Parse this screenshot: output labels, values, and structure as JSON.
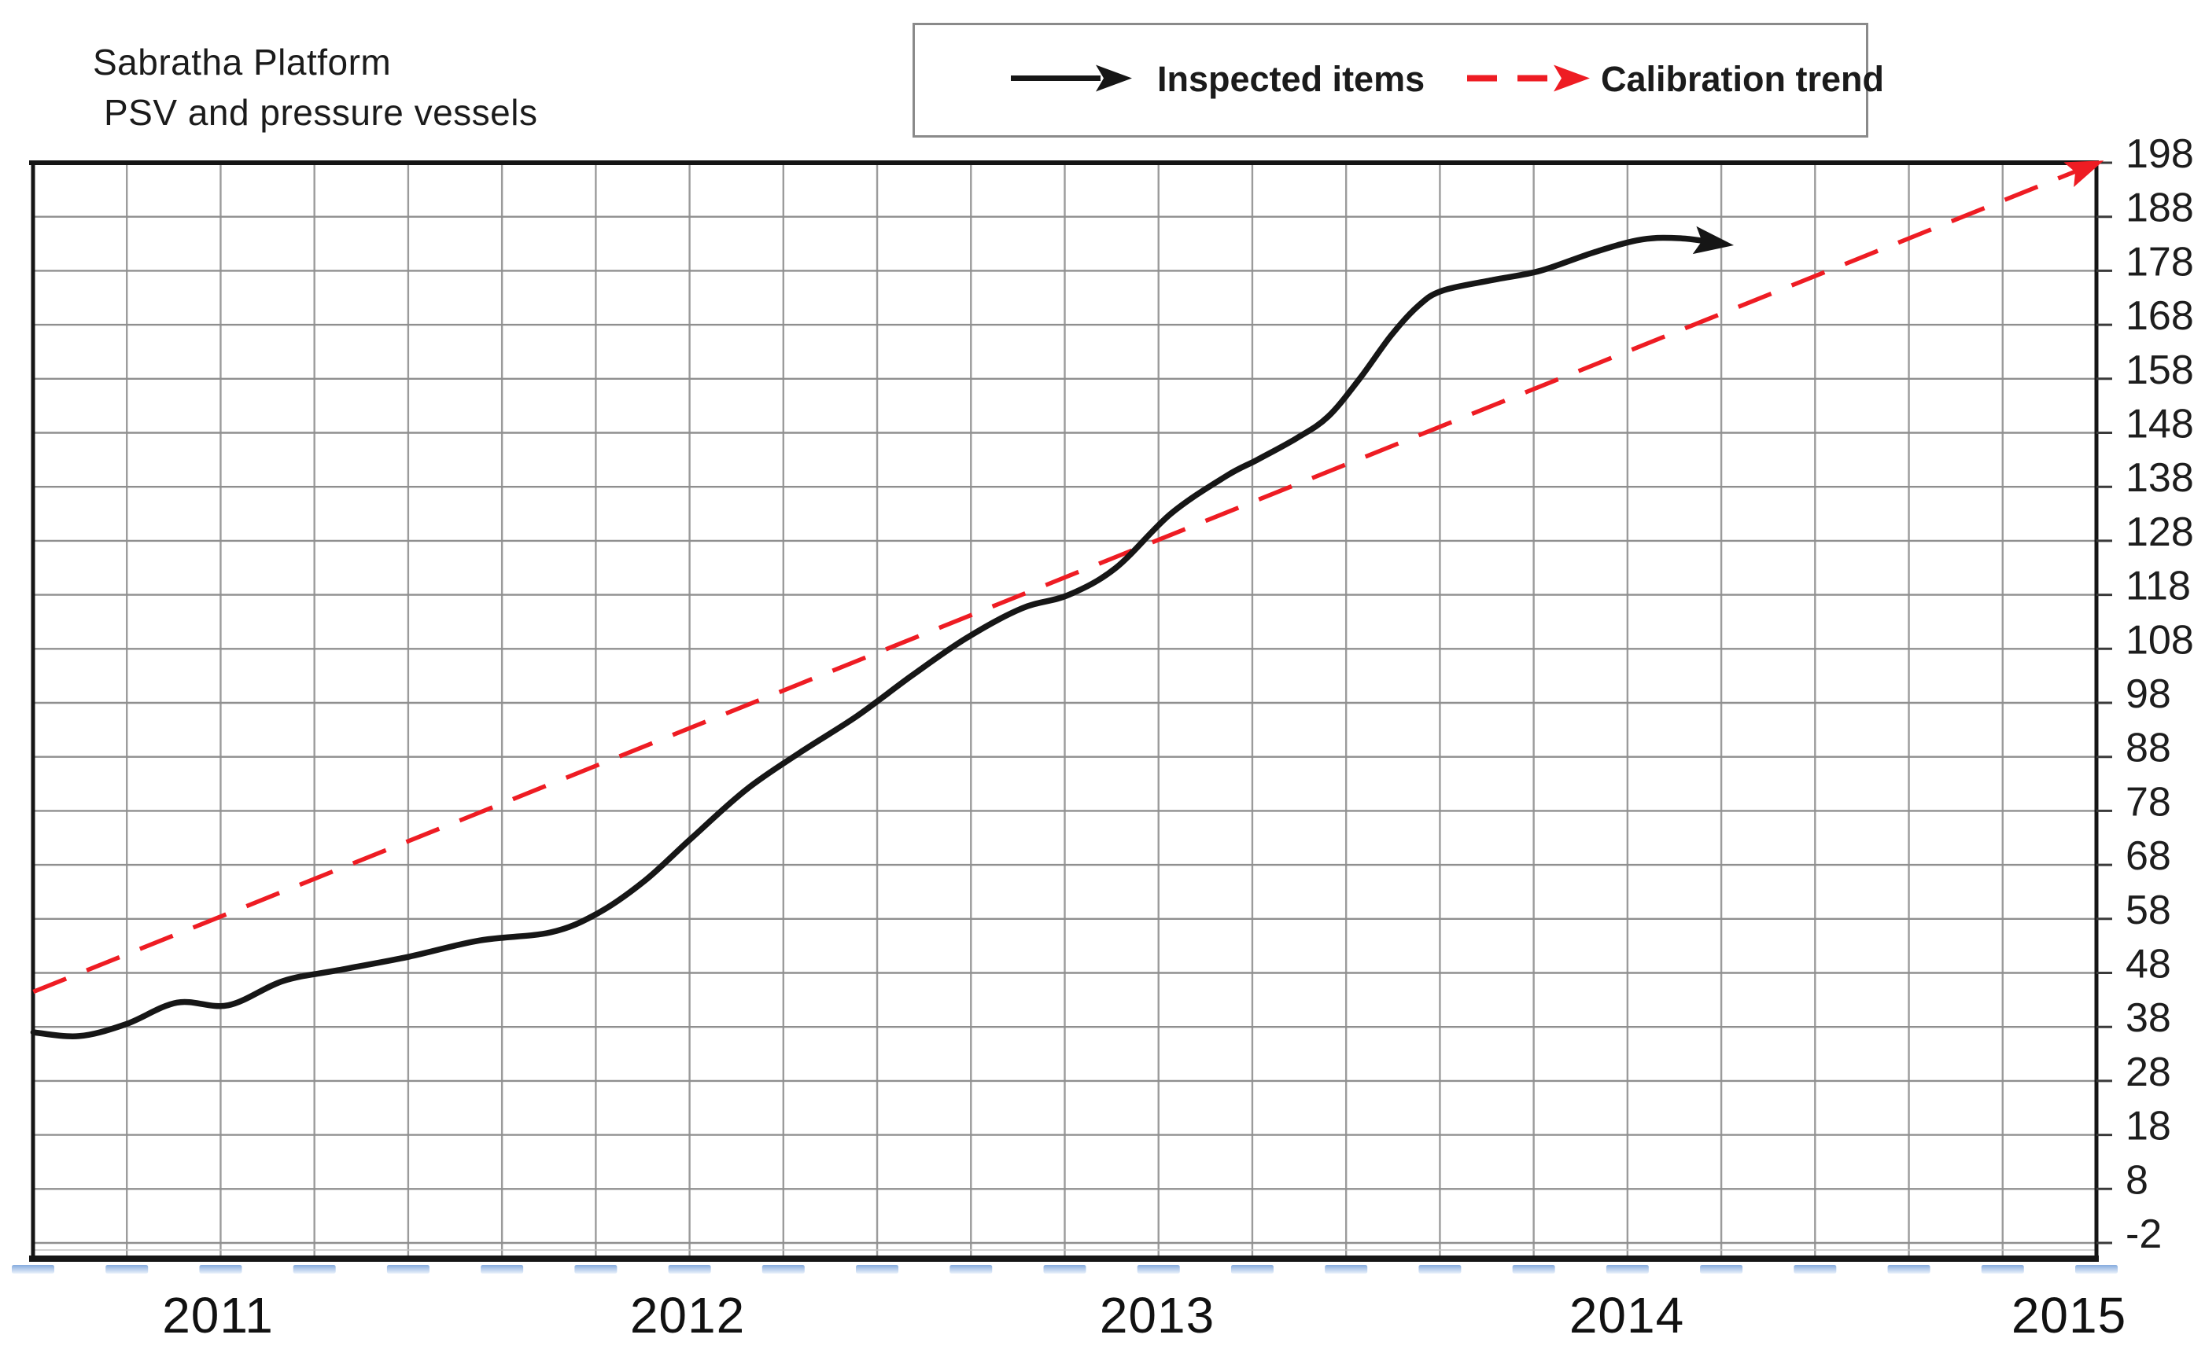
{
  "title": {
    "line1": "Sabratha Platform",
    "line2": "PSV and pressure vessels"
  },
  "legend": {
    "items": [
      {
        "label": "Inspected items",
        "marker": "solid-arrow",
        "color": "#161616"
      },
      {
        "label": "Calibration trend",
        "marker": "dashed-arrow",
        "color": "#ee1c23"
      }
    ]
  },
  "chart_data": {
    "type": "line",
    "title": "Sabratha Platform",
    "subtitle": "PSV and pressure vessels",
    "grid": "on",
    "legend_position": "top",
    "x_axis": {
      "tick_labels": [
        "2011",
        "2012",
        "2013",
        "2014",
        "2015"
      ],
      "range": [
        2010.61,
        2015.0
      ],
      "vertical_grid_divisions": 22
    },
    "y_axis": {
      "side": "right",
      "min": -2,
      "max": 198,
      "step": 10,
      "tick_labels": [
        "198",
        "188",
        "178",
        "168",
        "158",
        "148",
        "138",
        "128",
        "118",
        "108",
        "98",
        "88",
        "78",
        "68",
        "58",
        "48",
        "38",
        "28",
        "18",
        "8",
        "-2"
      ]
    },
    "series": [
      {
        "name": "Inspected items",
        "style": "solid",
        "color": "#161616",
        "arrow_end": true,
        "points": [
          {
            "year": 2010.607,
            "value": 37
          },
          {
            "year": 2010.704,
            "value": 36.3
          },
          {
            "year": 2010.804,
            "value": 38.5
          },
          {
            "year": 2010.913,
            "value": 42.5
          },
          {
            "year": 2011.022,
            "value": 42
          },
          {
            "year": 2011.139,
            "value": 46.5
          },
          {
            "year": 2011.256,
            "value": 48.5
          },
          {
            "year": 2011.407,
            "value": 51
          },
          {
            "year": 2011.557,
            "value": 54
          },
          {
            "year": 2011.708,
            "value": 55.5
          },
          {
            "year": 2011.808,
            "value": 59
          },
          {
            "year": 2011.908,
            "value": 65
          },
          {
            "year": 2012.009,
            "value": 73
          },
          {
            "year": 2012.126,
            "value": 82
          },
          {
            "year": 2012.243,
            "value": 89
          },
          {
            "year": 2012.36,
            "value": 95.5
          },
          {
            "year": 2012.477,
            "value": 103
          },
          {
            "year": 2012.594,
            "value": 110
          },
          {
            "year": 2012.712,
            "value": 115.5
          },
          {
            "year": 2012.812,
            "value": 118
          },
          {
            "year": 2012.912,
            "value": 123
          },
          {
            "year": 2013.029,
            "value": 133
          },
          {
            "year": 2013.147,
            "value": 140
          },
          {
            "year": 2013.213,
            "value": 143
          },
          {
            "year": 2013.297,
            "value": 147
          },
          {
            "year": 2013.364,
            "value": 151
          },
          {
            "year": 2013.431,
            "value": 158
          },
          {
            "year": 2013.498,
            "value": 166
          },
          {
            "year": 2013.556,
            "value": 171.5
          },
          {
            "year": 2013.607,
            "value": 174.3
          },
          {
            "year": 2013.715,
            "value": 176.3
          },
          {
            "year": 2013.816,
            "value": 178
          },
          {
            "year": 2013.933,
            "value": 181.5
          },
          {
            "year": 2014.033,
            "value": 183.8
          },
          {
            "year": 2014.117,
            "value": 184
          },
          {
            "year": 2014.187,
            "value": 183.2
          }
        ]
      },
      {
        "name": "Calibration trend",
        "style": "dashed",
        "color": "#ee1c23",
        "arrow_end": true,
        "points": [
          {
            "year": 2010.607,
            "value": 44.5
          },
          {
            "year": 2015.0,
            "value": 198
          }
        ]
      }
    ]
  }
}
